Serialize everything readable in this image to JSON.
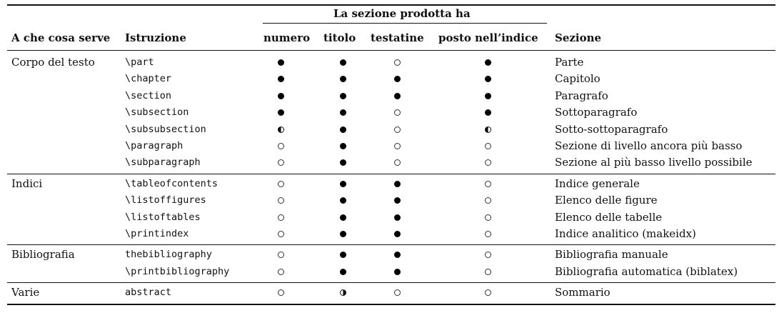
{
  "header": {
    "group": "La sezione prodotta ha",
    "col_purpose": "A che cosa serve",
    "col_command": "Istruzione",
    "col_number": "numero",
    "col_title": "titolo",
    "col_headings": "testatine",
    "col_index": "posto nell’indice",
    "col_section": "Sezione"
  },
  "legend_symbols": {
    "full": "●",
    "empty": "○",
    "half_left": "◐",
    "half_right": "◑"
  },
  "groups": [
    {
      "label": "Corpo del testo",
      "rows": [
        {
          "cmd": "\\part",
          "marks": [
            "full",
            "full",
            "empty",
            "full"
          ],
          "section": "Parte"
        },
        {
          "cmd": "\\chapter",
          "marks": [
            "full",
            "full",
            "full",
            "full"
          ],
          "section": "Capitolo"
        },
        {
          "cmd": "\\section",
          "marks": [
            "full",
            "full",
            "full",
            "full"
          ],
          "section": "Paragrafo"
        },
        {
          "cmd": "\\subsection",
          "marks": [
            "full",
            "full",
            "empty",
            "full"
          ],
          "section": "Sottoparagrafo"
        },
        {
          "cmd": "\\subsubsection",
          "marks": [
            "halfL",
            "full",
            "empty",
            "halfL"
          ],
          "section": "Sotto-sottoparagrafo"
        },
        {
          "cmd": "\\paragraph",
          "marks": [
            "empty",
            "full",
            "empty",
            "empty"
          ],
          "section": "Sezione di livello ancora più basso"
        },
        {
          "cmd": "\\subparagraph",
          "marks": [
            "empty",
            "full",
            "empty",
            "empty"
          ],
          "section": "Sezione al più basso livello possibile"
        }
      ]
    },
    {
      "label": "Indici",
      "rows": [
        {
          "cmd": "\\tableofcontents",
          "marks": [
            "empty",
            "full",
            "full",
            "empty"
          ],
          "section": "Indice generale"
        },
        {
          "cmd": "\\listoffigures",
          "marks": [
            "empty",
            "full",
            "full",
            "empty"
          ],
          "section": "Elenco delle figure"
        },
        {
          "cmd": "\\listoftables",
          "marks": [
            "empty",
            "full",
            "full",
            "empty"
          ],
          "section": "Elenco delle tabelle"
        },
        {
          "cmd": "\\printindex",
          "marks": [
            "empty",
            "full",
            "full",
            "empty"
          ],
          "section": "Indice analitico (makeidx)"
        }
      ]
    },
    {
      "label": "Bibliografia",
      "rows": [
        {
          "cmd": "thebibliography",
          "marks": [
            "empty",
            "full",
            "full",
            "empty"
          ],
          "section": "Bibliografia manuale"
        },
        {
          "cmd": "\\printbibliography",
          "marks": [
            "empty",
            "full",
            "full",
            "empty"
          ],
          "section": "Bibliografia automatica (biblatex)"
        }
      ]
    },
    {
      "label": "Varie",
      "rows": [
        {
          "cmd": "abstract",
          "marks": [
            "empty",
            "halfR",
            "empty",
            "empty"
          ],
          "section": "Sommario"
        }
      ]
    }
  ]
}
